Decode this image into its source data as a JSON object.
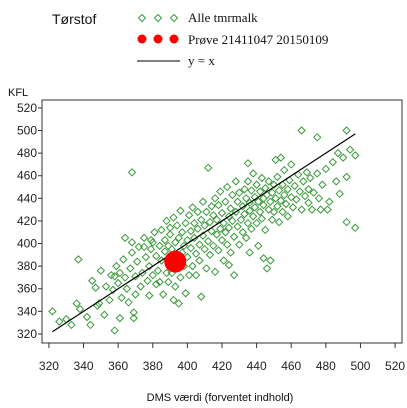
{
  "chart_data": {
    "type": "scatter",
    "title": "Tørstof",
    "xlabel": "DMS værdi (forventet indhold)",
    "ylabel": "KFL",
    "xlim": [
      316,
      524
    ],
    "ylim": [
      312,
      527
    ],
    "x_ticks": [
      320,
      340,
      360,
      380,
      400,
      420,
      440,
      460,
      480,
      500,
      520
    ],
    "y_ticks": [
      320,
      340,
      360,
      380,
      400,
      420,
      440,
      460,
      480,
      500,
      520
    ],
    "grid": false,
    "legend": "top",
    "series": [
      {
        "name": "Alle tmrmalk",
        "marker": "diamond",
        "color": "#3a9a3a",
        "points": [
          [
            322,
            340
          ],
          [
            326,
            331
          ],
          [
            330,
            333
          ],
          [
            333,
            328
          ],
          [
            336,
            347
          ],
          [
            337,
            386
          ],
          [
            338,
            342
          ],
          [
            342,
            335
          ],
          [
            344,
            328
          ],
          [
            345,
            367
          ],
          [
            347,
            361
          ],
          [
            348,
            345
          ],
          [
            349,
            347
          ],
          [
            350,
            376
          ],
          [
            352,
            337
          ],
          [
            353,
            362
          ],
          [
            355,
            350
          ],
          [
            356,
            372
          ],
          [
            357,
            359
          ],
          [
            358,
            323
          ],
          [
            358,
            371
          ],
          [
            359,
            380
          ],
          [
            360,
            365
          ],
          [
            361,
            334
          ],
          [
            361,
            374
          ],
          [
            362,
            352
          ],
          [
            363,
            386
          ],
          [
            364,
            405
          ],
          [
            364,
            370
          ],
          [
            365,
            360
          ],
          [
            366,
            348
          ],
          [
            367,
            378
          ],
          [
            368,
            463
          ],
          [
            368,
            401
          ],
          [
            368,
            392
          ],
          [
            369,
            334
          ],
          [
            369,
            339
          ],
          [
            370,
            371
          ],
          [
            370,
            355
          ],
          [
            371,
            384
          ],
          [
            372,
            397
          ],
          [
            373,
            362
          ],
          [
            374,
            374
          ],
          [
            375,
            397
          ],
          [
            375,
            405
          ],
          [
            376,
            388
          ],
          [
            377,
            367
          ],
          [
            378,
            380
          ],
          [
            378,
            354
          ],
          [
            379,
            403
          ],
          [
            379,
            395
          ],
          [
            380,
            372
          ],
          [
            380,
            401
          ],
          [
            381,
            410
          ],
          [
            382,
            389
          ],
          [
            382,
            364
          ],
          [
            383,
            376
          ],
          [
            384,
            398
          ],
          [
            384,
            366
          ],
          [
            385,
            412
          ],
          [
            385,
            385
          ],
          [
            386,
            355
          ],
          [
            387,
            393
          ],
          [
            387,
            403
          ],
          [
            388,
            374
          ],
          [
            388,
            420
          ],
          [
            389,
            366
          ],
          [
            389,
            398
          ],
          [
            390,
            382
          ],
          [
            390,
            408
          ],
          [
            390,
            414
          ],
          [
            391,
            374
          ],
          [
            391,
            395
          ],
          [
            392,
            350
          ],
          [
            392,
            423
          ],
          [
            393,
            401
          ],
          [
            393,
            362
          ],
          [
            394,
            387
          ],
          [
            394,
            416
          ],
          [
            395,
            347
          ],
          [
            395,
            405
          ],
          [
            396,
            370
          ],
          [
            396,
            429
          ],
          [
            397,
            392
          ],
          [
            397,
            410
          ],
          [
            398,
            380
          ],
          [
            398,
            398
          ],
          [
            399,
            418
          ],
          [
            399,
            356
          ],
          [
            400,
            403
          ],
          [
            400,
            388
          ],
          [
            401,
            425
          ],
          [
            401,
            372
          ],
          [
            402,
            411
          ],
          [
            402,
            396
          ],
          [
            403,
            432
          ],
          [
            403,
            380
          ],
          [
            404,
            405
          ],
          [
            404,
            418
          ],
          [
            405,
            391
          ],
          [
            405,
            372
          ],
          [
            406,
            413
          ],
          [
            406,
            428
          ],
          [
            407,
            385
          ],
          [
            407,
            399
          ],
          [
            408,
            421
          ],
          [
            408,
            353
          ],
          [
            409,
            407
          ],
          [
            409,
            437
          ],
          [
            410,
            395
          ],
          [
            410,
            416
          ],
          [
            411,
            378
          ],
          [
            411,
            428
          ],
          [
            412,
            467
          ],
          [
            412,
            402
          ],
          [
            413,
            419
          ],
          [
            413,
            390
          ],
          [
            414,
            433
          ],
          [
            414,
            411
          ],
          [
            415,
            398
          ],
          [
            415,
            425
          ],
          [
            416,
            375
          ],
          [
            416,
            440
          ],
          [
            417,
            408
          ],
          [
            417,
            421
          ],
          [
            418,
            394
          ],
          [
            418,
            434
          ],
          [
            419,
            413
          ],
          [
            419,
            446
          ],
          [
            420,
            403
          ],
          [
            420,
            427
          ],
          [
            421,
            385
          ],
          [
            421,
            418
          ],
          [
            422,
            437
          ],
          [
            422,
            410
          ],
          [
            423,
            399
          ],
          [
            423,
            450
          ],
          [
            424,
            381
          ],
          [
            424,
            424
          ],
          [
            424,
            414
          ],
          [
            425,
            392
          ],
          [
            425,
            431
          ],
          [
            426,
            420
          ],
          [
            426,
            443
          ],
          [
            427,
            406
          ],
          [
            427,
            372
          ],
          [
            428,
            428
          ],
          [
            428,
            455
          ],
          [
            429,
            415
          ],
          [
            429,
            437
          ],
          [
            430,
            399
          ],
          [
            430,
            445
          ],
          [
            431,
            421
          ],
          [
            432,
            433
          ],
          [
            432,
            410
          ],
          [
            433,
            448
          ],
          [
            433,
            426
          ],
          [
            434,
            440
          ],
          [
            434,
            405
          ],
          [
            435,
            471
          ],
          [
            435,
            455
          ],
          [
            435,
            418
          ],
          [
            436,
            392
          ],
          [
            436,
            436
          ],
          [
            436,
            429
          ],
          [
            437,
            447
          ],
          [
            437,
            413
          ],
          [
            438,
            462
          ],
          [
            438,
            424
          ],
          [
            439,
            441
          ],
          [
            439,
            432
          ],
          [
            440,
            452
          ],
          [
            440,
            418
          ],
          [
            441,
            437
          ],
          [
            441,
            398
          ],
          [
            442,
            446
          ],
          [
            442,
            428
          ],
          [
            443,
            458
          ],
          [
            443,
            422
          ],
          [
            444,
            387
          ],
          [
            444,
            440
          ],
          [
            444,
            434
          ],
          [
            445,
            449
          ],
          [
            445,
            412
          ],
          [
            446,
            378
          ],
          [
            446,
            443
          ],
          [
            447,
            430
          ],
          [
            447,
            455
          ],
          [
            448,
            385
          ],
          [
            448,
            437
          ],
          [
            449,
            445
          ],
          [
            449,
            421
          ],
          [
            450,
            452
          ],
          [
            450,
            428
          ],
          [
            451,
            440
          ],
          [
            451,
            474
          ],
          [
            452,
            433
          ],
          [
            452,
            459
          ],
          [
            453,
            447
          ],
          [
            453,
            419
          ],
          [
            454,
            476
          ],
          [
            454,
            438
          ],
          [
            455,
            452
          ],
          [
            455,
            428
          ],
          [
            456,
            443
          ],
          [
            456,
            465
          ],
          [
            457,
            435
          ],
          [
            458,
            448
          ],
          [
            458,
            424
          ],
          [
            459,
            456
          ],
          [
            460,
            441
          ],
          [
            460,
            470
          ],
          [
            461,
            432
          ],
          [
            462,
            451
          ],
          [
            463,
            439
          ],
          [
            464,
            461
          ],
          [
            465,
            446
          ],
          [
            466,
            500
          ],
          [
            466,
            430
          ],
          [
            467,
            455
          ],
          [
            468,
            442
          ],
          [
            469,
            463
          ],
          [
            470,
            436
          ],
          [
            470,
            448
          ],
          [
            471,
            458
          ],
          [
            472,
            430
          ],
          [
            473,
            445
          ],
          [
            475,
            494
          ],
          [
            475,
            462
          ],
          [
            476,
            440
          ],
          [
            477,
            430
          ],
          [
            478,
            452
          ],
          [
            480,
            466
          ],
          [
            481,
            430
          ],
          [
            482,
            437
          ],
          [
            484,
            472
          ],
          [
            486,
            455
          ],
          [
            487,
            480
          ],
          [
            488,
            444
          ],
          [
            490,
            476
          ],
          [
            492,
            459
          ],
          [
            492,
            419
          ],
          [
            492,
            500
          ],
          [
            494,
            483
          ],
          [
            497,
            414
          ],
          [
            497,
            478
          ]
        ]
      },
      {
        "name": "Prøve 21411047 20150109",
        "marker": "circle",
        "color": "#ff0000",
        "points": [
          [
            393,
            384
          ]
        ]
      },
      {
        "name": "y = x",
        "type": "line",
        "color": "#000000",
        "points": [
          [
            322,
            322
          ],
          [
            497,
            497
          ]
        ]
      }
    ]
  }
}
